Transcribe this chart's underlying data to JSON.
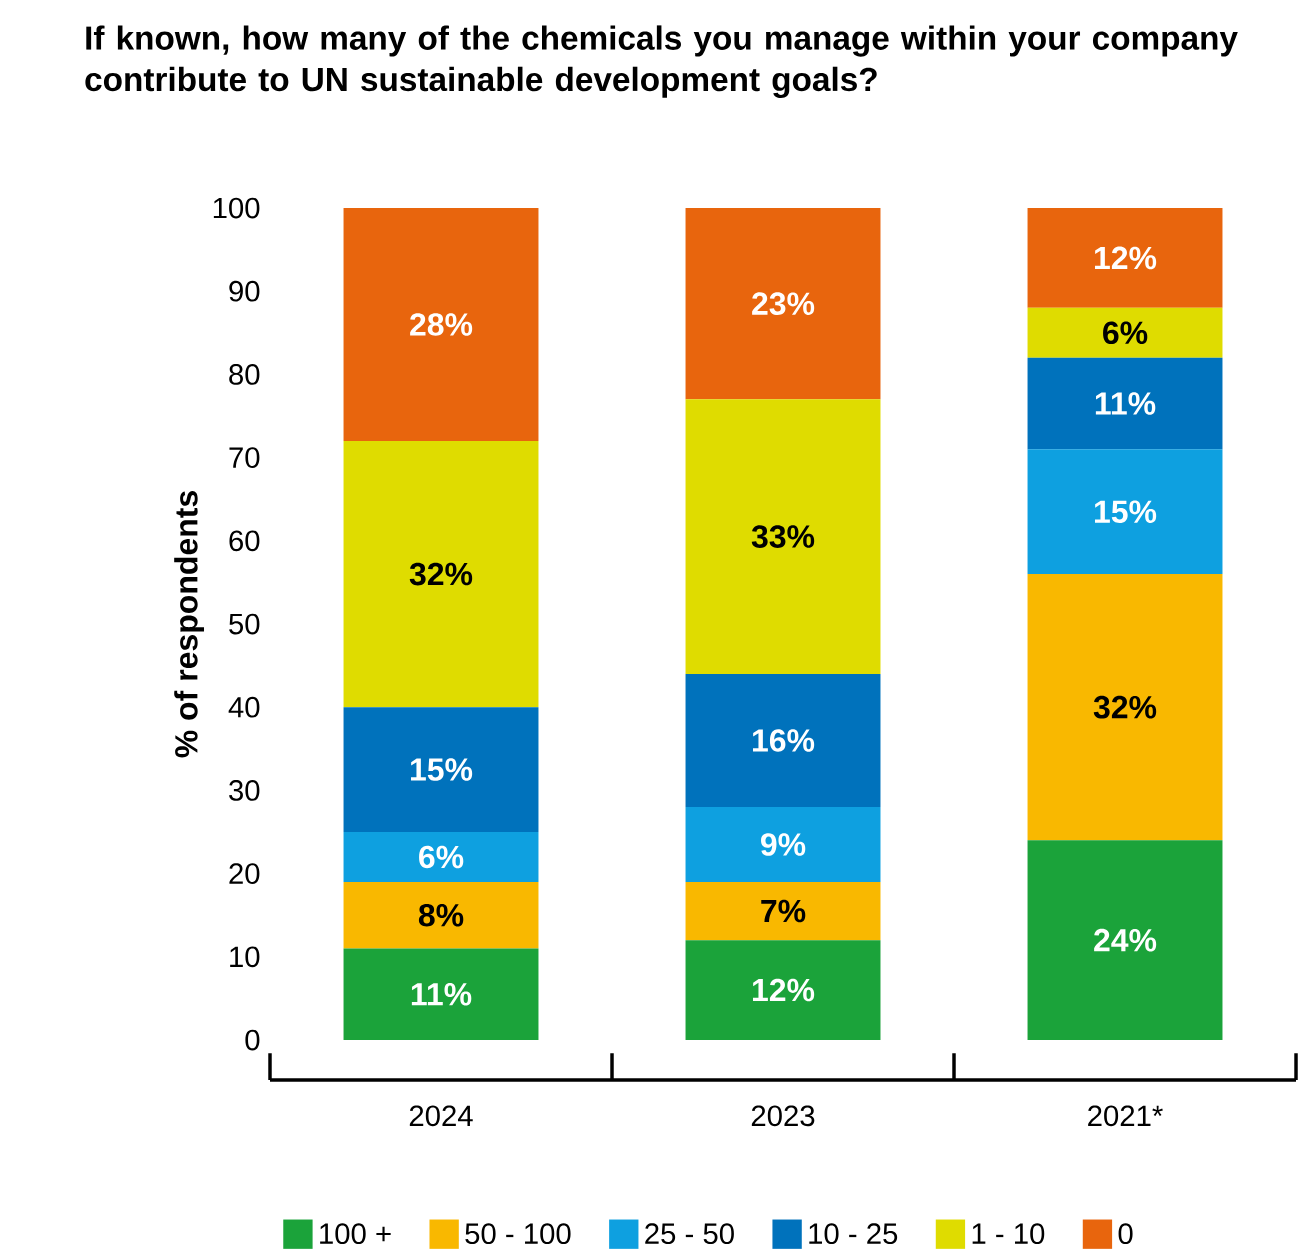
{
  "chart_data": {
    "type": "bar",
    "stacked": true,
    "title": "If known, how many of the chemicals you manage within your company contribute to UN sustainable development goals?",
    "ylabel": "% of respondents",
    "categories": [
      "2024",
      "2023",
      "2021*"
    ],
    "series": [
      {
        "name": "100 +",
        "color": "#1ba33a",
        "values": [
          11,
          12,
          24
        ],
        "value_labels": [
          "11%",
          "12%",
          "24%"
        ]
      },
      {
        "name": "50 - 100",
        "color": "#f9b800",
        "values": [
          8,
          7,
          32
        ],
        "value_labels": [
          "8%",
          "7%",
          "32%"
        ]
      },
      {
        "name": "25 - 50",
        "color": "#0ea0e0",
        "values": [
          6,
          9,
          15
        ],
        "value_labels": [
          "6%",
          "9%",
          "15%"
        ]
      },
      {
        "name": "10 - 25",
        "color": "#0072bc",
        "values": [
          15,
          16,
          11
        ],
        "value_labels": [
          "15%",
          "16%",
          "11%"
        ]
      },
      {
        "name": "1 - 10",
        "color": "#dfdc00",
        "values": [
          32,
          33,
          6
        ],
        "value_labels": [
          "32%",
          "33%",
          "6%"
        ]
      },
      {
        "name": "0",
        "color": "#e8650d",
        "values": [
          28,
          23,
          12
        ],
        "value_labels": [
          "28%",
          "23%",
          "12%"
        ]
      }
    ],
    "ylim": [
      0,
      100
    ],
    "yticks": [
      0,
      10,
      20,
      30,
      40,
      50,
      60,
      70,
      80,
      90,
      100
    ],
    "legend": "bottom"
  }
}
